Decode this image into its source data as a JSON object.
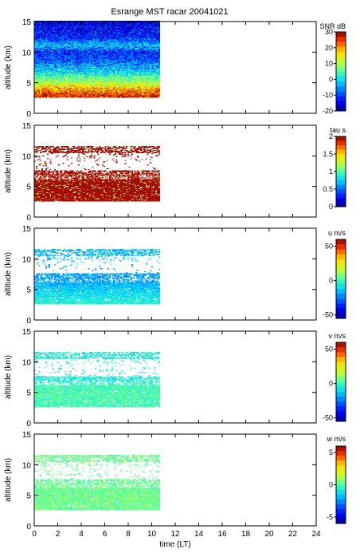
{
  "title": "Esrange MST racar 20041021",
  "chart_data": [
    {
      "type": "heatmap",
      "panel_id": "snr",
      "ylabel": "altitude (km)",
      "xlim": [
        0,
        24
      ],
      "ylim": [
        0,
        15
      ],
      "x_ticks": [
        0,
        2,
        4,
        6,
        8,
        10,
        12,
        14,
        16,
        18,
        20,
        22,
        24
      ],
      "y_ticks": [
        0,
        5,
        10,
        15
      ],
      "colorbar": {
        "label": "SNR dB",
        "range": [
          -20,
          30
        ],
        "ticks": [
          -20,
          -10,
          0,
          10,
          20,
          30
        ]
      },
      "data_extent": {
        "x": [
          0,
          10.6
        ],
        "y": [
          2.6,
          15
        ]
      },
      "profile": [
        {
          "alt": 2.8,
          "value": 26
        },
        {
          "alt": 3.5,
          "value": 22
        },
        {
          "alt": 4.2,
          "value": 17
        },
        {
          "alt": 5.0,
          "value": 10
        },
        {
          "alt": 6.0,
          "value": 4
        },
        {
          "alt": 7.0,
          "value": -2
        },
        {
          "alt": 8.5,
          "value": -8
        },
        {
          "alt": 10.0,
          "value": -12
        },
        {
          "alt": 11.0,
          "value": -2
        },
        {
          "alt": 12.5,
          "value": -12
        },
        {
          "alt": 14.5,
          "value": -15
        }
      ]
    },
    {
      "type": "heatmap",
      "panel_id": "tau",
      "ylabel": "altitude (km)",
      "xlim": [
        0,
        24
      ],
      "ylim": [
        0,
        15
      ],
      "x_ticks": [
        0,
        2,
        4,
        6,
        8,
        10,
        12,
        14,
        16,
        18,
        20,
        22,
        24
      ],
      "y_ticks": [
        0,
        5,
        10,
        15
      ],
      "colorbar": {
        "label": "tau s",
        "range": [
          0,
          2
        ],
        "ticks": [
          0,
          0.5,
          1,
          1.5,
          2
        ]
      },
      "data_extent": {
        "x": [
          0,
          10.6
        ],
        "y": [
          2.6,
          11.5
        ]
      },
      "profile": [
        {
          "alt": 3.0,
          "value": 1.95
        },
        {
          "alt": 4.0,
          "value": 1.95
        },
        {
          "alt": 5.5,
          "value": 1.95
        },
        {
          "alt": 7.0,
          "value": 1.95
        },
        {
          "alt": 10.8,
          "value": 1.95
        }
      ]
    },
    {
      "type": "heatmap",
      "panel_id": "u",
      "ylabel": "altitude (km)",
      "xlim": [
        0,
        24
      ],
      "ylim": [
        0,
        15
      ],
      "x_ticks": [
        0,
        2,
        4,
        6,
        8,
        10,
        12,
        14,
        16,
        18,
        20,
        22,
        24
      ],
      "y_ticks": [
        0,
        5,
        10,
        15
      ],
      "colorbar": {
        "label": "u m/s",
        "range": [
          -55,
          60
        ],
        "ticks": [
          -50,
          0,
          50
        ]
      },
      "data_extent": {
        "x": [
          0,
          10.6
        ],
        "y": [
          2.6,
          11.5
        ]
      },
      "profile": [
        {
          "alt": 3.0,
          "value": -5
        },
        {
          "alt": 4.0,
          "value": -8
        },
        {
          "alt": 5.5,
          "value": -15
        },
        {
          "alt": 6.5,
          "value": -20
        },
        {
          "alt": 10.8,
          "value": -15
        }
      ]
    },
    {
      "type": "heatmap",
      "panel_id": "v",
      "ylabel": "altitude (km)",
      "xlim": [
        0,
        24
      ],
      "ylim": [
        0,
        15
      ],
      "x_ticks": [
        0,
        2,
        4,
        6,
        8,
        10,
        12,
        14,
        16,
        18,
        20,
        22,
        24
      ],
      "y_ticks": [
        0,
        5,
        10,
        15
      ],
      "colorbar": {
        "label": "v m/s",
        "range": [
          -55,
          60
        ],
        "ticks": [
          -50,
          0,
          50
        ]
      },
      "data_extent": {
        "x": [
          0,
          10.6
        ],
        "y": [
          2.6,
          11.5
        ]
      },
      "profile": [
        {
          "alt": 3.0,
          "value": 0
        },
        {
          "alt": 4.5,
          "value": 2
        },
        {
          "alt": 6.0,
          "value": 0
        },
        {
          "alt": 7.0,
          "value": -5
        },
        {
          "alt": 10.8,
          "value": -5
        }
      ]
    },
    {
      "type": "heatmap",
      "panel_id": "w",
      "ylabel": "altitude (km)",
      "xlabel": "time (LT)",
      "xlim": [
        0,
        24
      ],
      "ylim": [
        0,
        15
      ],
      "x_ticks": [
        0,
        2,
        4,
        6,
        8,
        10,
        12,
        14,
        16,
        18,
        20,
        22,
        24
      ],
      "y_ticks": [
        0,
        5,
        10,
        15
      ],
      "colorbar": {
        "label": "w m/s",
        "range": [
          -6,
          6
        ],
        "ticks": [
          -5,
          0,
          5
        ]
      },
      "data_extent": {
        "x": [
          0,
          10.6
        ],
        "y": [
          2.6,
          11.5
        ]
      },
      "profile": [
        {
          "alt": 3.0,
          "value": 0.3
        },
        {
          "alt": 4.5,
          "value": 0.4
        },
        {
          "alt": 6.0,
          "value": 0.3
        },
        {
          "alt": 7.0,
          "value": 0.2
        },
        {
          "alt": 10.8,
          "value": 0.3
        }
      ]
    }
  ]
}
